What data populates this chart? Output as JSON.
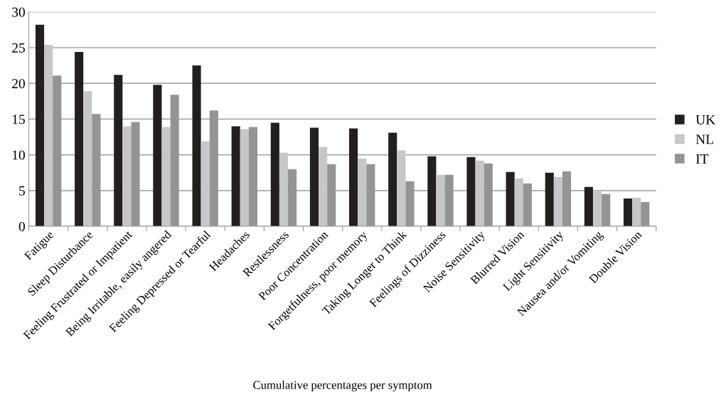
{
  "chart_data": {
    "type": "bar",
    "xlabel": "Cumulative percentages per symptom",
    "categories": [
      "Fatigue",
      "Sleep Disturbance",
      "Feeling Frustrated or Impatient",
      "Being Irritable, easily angered",
      "Feeling Depressed or Tearful",
      "Headaches",
      "Restlessness",
      "Poor Concentration",
      "Forgetfulness, poor memory",
      "Taking Longer to Think",
      "Feelings of Dizziness",
      "Noise Sensitivity",
      "Blurred Vision",
      "Light Sensitivity",
      "Nausea and/or Vomiting",
      "Double Vision"
    ],
    "series": [
      {
        "name": "UK",
        "color": "#231f20",
        "values": [
          28.2,
          24.4,
          21.2,
          19.8,
          22.5,
          14.0,
          14.5,
          13.8,
          13.7,
          13.1,
          9.8,
          9.7,
          7.6,
          7.5,
          5.5,
          3.9
        ]
      },
      {
        "name": "NL",
        "color": "#c6c7c9",
        "values": [
          25.4,
          18.9,
          14.0,
          13.9,
          11.9,
          13.6,
          10.3,
          11.1,
          9.5,
          10.6,
          7.2,
          9.2,
          6.7,
          6.9,
          5.0,
          4.0
        ]
      },
      {
        "name": "IT",
        "color": "#939496",
        "values": [
          21.1,
          15.7,
          14.6,
          18.4,
          16.2,
          13.9,
          8.0,
          8.7,
          8.7,
          6.3,
          7.2,
          8.8,
          6.0,
          7.7,
          4.5,
          3.4
        ]
      }
    ],
    "ylim": [
      0,
      30
    ],
    "yticks": [
      0,
      5,
      10,
      15,
      20,
      25,
      30
    ],
    "grid": "y",
    "legend": "right"
  }
}
